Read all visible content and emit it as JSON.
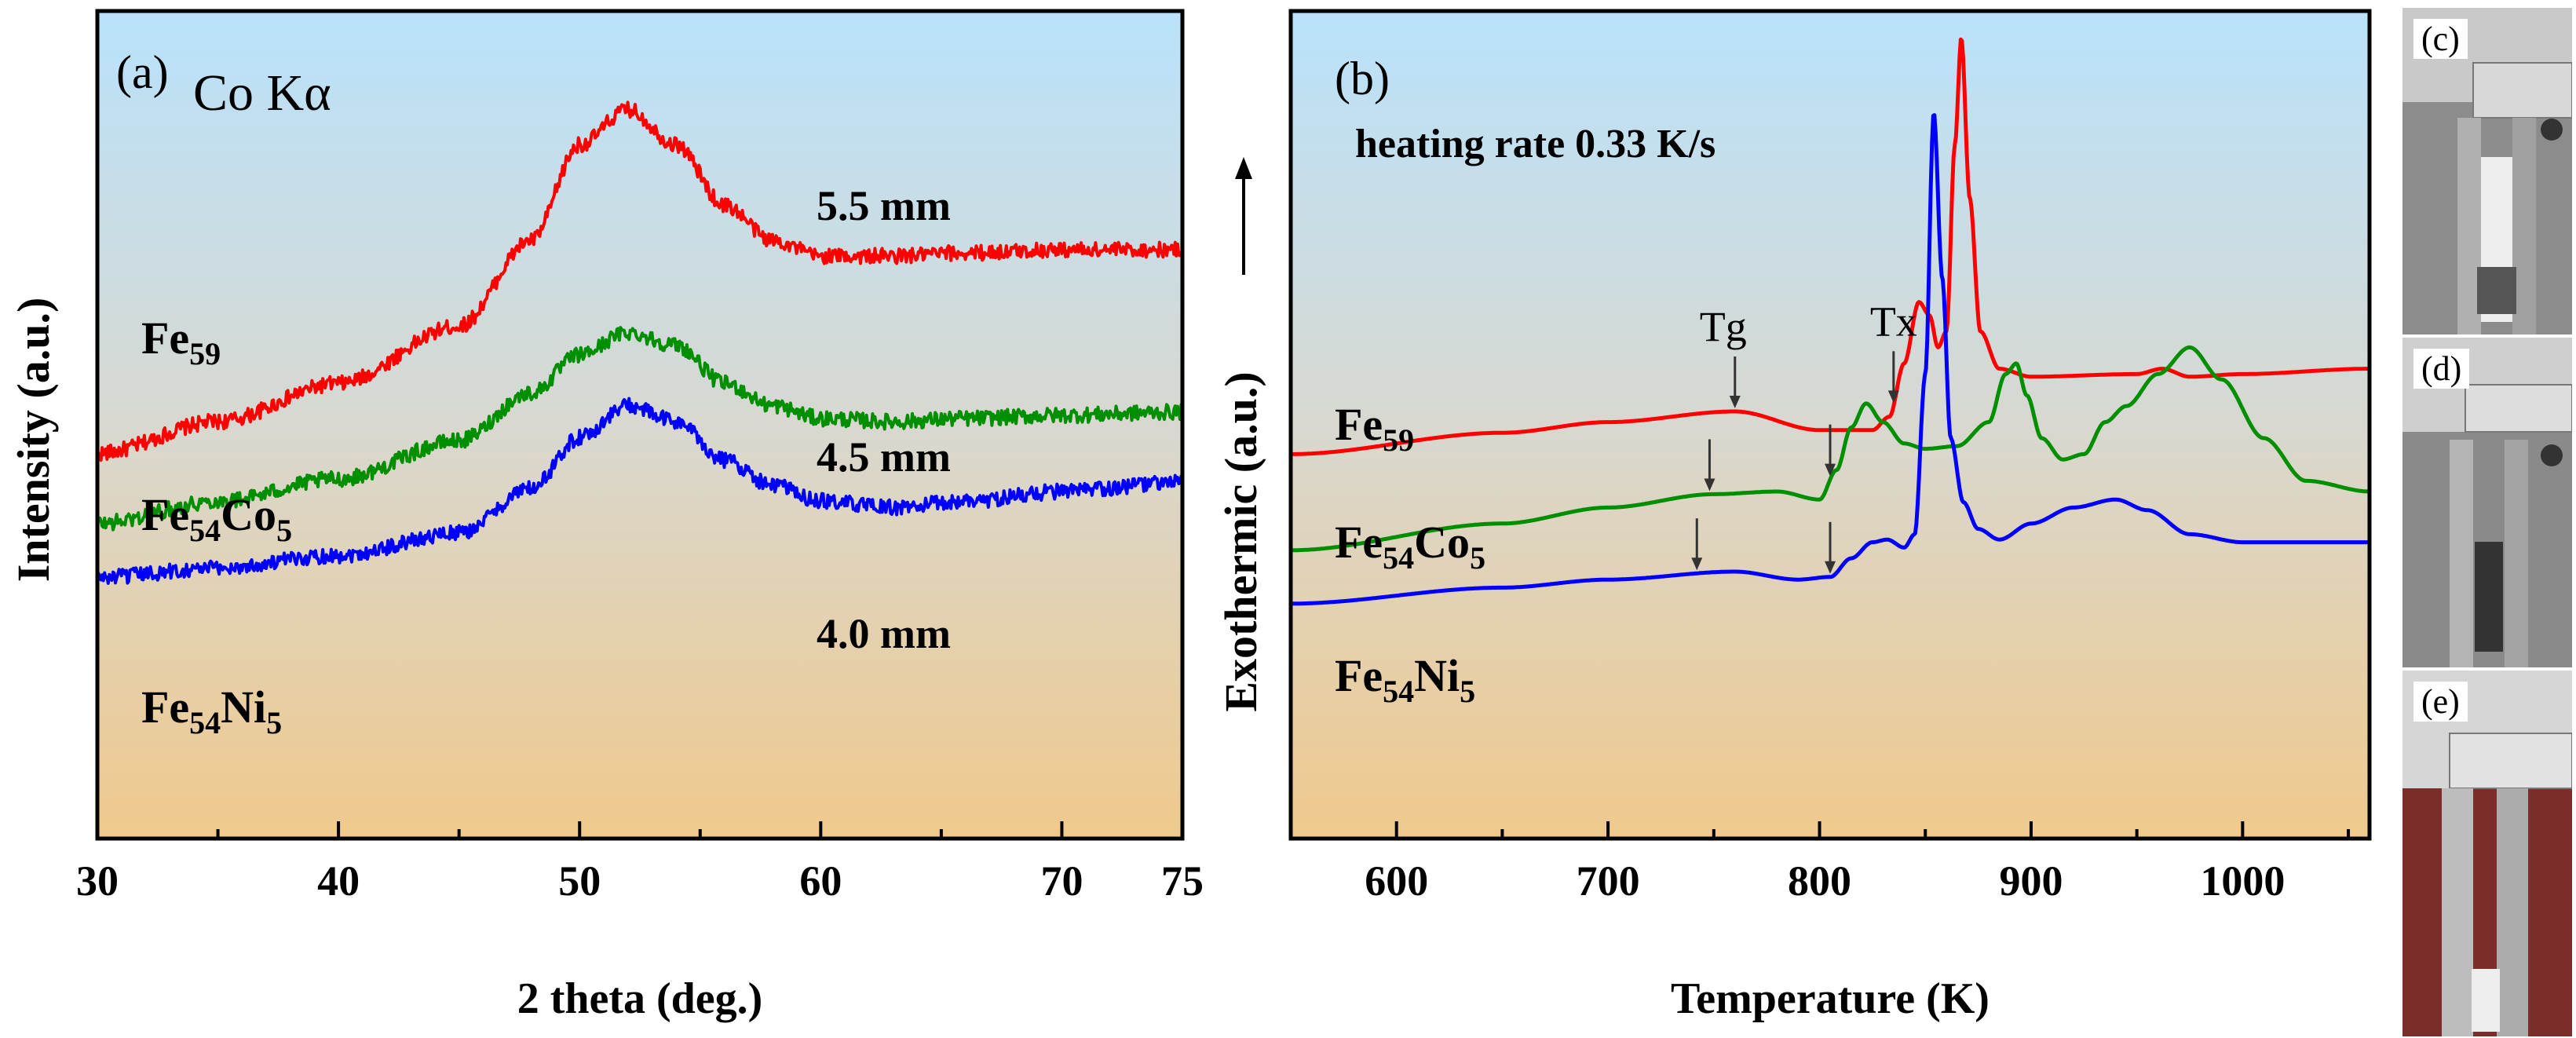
{
  "chart_data": [
    {
      "type": "line",
      "panel_label": "(a)",
      "annotation": "Co Kα",
      "xlabel": "2 theta  (deg.)",
      "ylabel": "Intensity (a.u.)",
      "xlim": [
        30,
        75
      ],
      "xticks": [
        30,
        40,
        50,
        60,
        70
      ],
      "grid": false,
      "series": [
        {
          "name": "Fe59",
          "name_base": "Fe",
          "name_sub": "59",
          "thickness": "5.5 mm",
          "color": "#ff0000",
          "x": [
            30,
            35,
            40,
            45,
            48,
            50,
            52,
            54,
            56,
            58,
            60,
            63,
            66,
            70,
            75
          ],
          "y": [
            0.255,
            0.305,
            0.365,
            0.455,
            0.59,
            0.74,
            0.795,
            0.74,
            0.645,
            0.59,
            0.565,
            0.565,
            0.57,
            0.575,
            0.575
          ]
        },
        {
          "name": "Fe54Co5",
          "name_base": "Fe",
          "name_sub": "54",
          "name_base2": "Co",
          "name_sub2": "5",
          "thickness": "4.5 mm",
          "color": "#008f00",
          "x": [
            30,
            35,
            40,
            45,
            48,
            50,
            52,
            54,
            56,
            58,
            60,
            63,
            66,
            70,
            75
          ],
          "y": [
            0.145,
            0.18,
            0.215,
            0.275,
            0.35,
            0.41,
            0.445,
            0.425,
            0.365,
            0.33,
            0.31,
            0.305,
            0.31,
            0.315,
            0.32
          ]
        },
        {
          "name": "Fe54Ni5",
          "name_base": "Fe",
          "name_sub": "54",
          "name_base2": "Ni",
          "name_sub2": "5",
          "thickness": "4.0 mm",
          "color": "#0000ff",
          "x": [
            30,
            35,
            40,
            45,
            48,
            50,
            52,
            54,
            56,
            58,
            60,
            63,
            66,
            70,
            75
          ],
          "y": [
            0.06,
            0.075,
            0.095,
            0.13,
            0.2,
            0.28,
            0.33,
            0.305,
            0.245,
            0.205,
            0.18,
            0.17,
            0.18,
            0.195,
            0.21
          ]
        }
      ]
    },
    {
      "type": "line",
      "panel_label": "(b)",
      "annotation": "heating rate 0.33 K/s",
      "xlabel": "Temperature  (K)",
      "ylabel": "Exothermic (a.u.)",
      "xlim": [
        550,
        1060
      ],
      "xticks": [
        600,
        700,
        800,
        900,
        1000
      ],
      "grid": false,
      "markers": {
        "tg_label": "Tg",
        "tx_label": "Tx"
      },
      "series": [
        {
          "name": "Fe59",
          "name_base": "Fe",
          "name_sub": "59",
          "color": "#ff0000",
          "x": [
            550,
            650,
            700,
            760,
            800,
            825,
            833,
            840,
            847,
            852,
            856,
            860,
            864,
            867,
            871,
            876,
            885,
            900,
            950,
            962,
            975,
            1000,
            1060
          ],
          "y": [
            0.27,
            0.31,
            0.33,
            0.35,
            0.315,
            0.315,
            0.34,
            0.44,
            0.555,
            0.53,
            0.47,
            0.5,
            0.85,
            1.05,
            0.75,
            0.5,
            0.43,
            0.415,
            0.42,
            0.43,
            0.415,
            0.42,
            0.43
          ],
          "tg": 760,
          "tx": 835
        },
        {
          "name": "Fe54Co5",
          "name_base": "Fe",
          "name_sub": "54",
          "name_base2": "Co",
          "name_sub2": "5",
          "color": "#008f00",
          "x": [
            550,
            650,
            700,
            750,
            780,
            800,
            808,
            815,
            822,
            830,
            840,
            850,
            865,
            880,
            888,
            893,
            898,
            905,
            915,
            925,
            935,
            945,
            960,
            975,
            990,
            1010,
            1030,
            1060
          ],
          "y": [
            0.09,
            0.14,
            0.17,
            0.195,
            0.2,
            0.185,
            0.24,
            0.32,
            0.365,
            0.33,
            0.29,
            0.28,
            0.285,
            0.33,
            0.42,
            0.44,
            0.38,
            0.3,
            0.26,
            0.27,
            0.33,
            0.36,
            0.42,
            0.47,
            0.41,
            0.3,
            0.22,
            0.2
          ],
          "tg": 748,
          "tx": 805
        },
        {
          "name": "Fe54Ni5",
          "name_base": "Fe",
          "name_sub": "54",
          "name_base2": "Ni",
          "name_sub2": "5",
          "color": "#0000ff",
          "x": [
            550,
            650,
            700,
            760,
            790,
            805,
            815,
            825,
            832,
            840,
            845,
            850,
            854,
            858,
            862,
            868,
            875,
            885,
            900,
            920,
            940,
            955,
            975,
            1000,
            1060
          ],
          "y": [
            -0.01,
            0.02,
            0.035,
            0.05,
            0.035,
            0.04,
            0.075,
            0.105,
            0.11,
            0.095,
            0.12,
            0.42,
            0.91,
            0.6,
            0.3,
            0.18,
            0.13,
            0.11,
            0.14,
            0.17,
            0.185,
            0.165,
            0.12,
            0.105,
            0.105
          ],
          "tg": 742,
          "tx": 805
        }
      ]
    }
  ],
  "photos": {
    "c": "(c)",
    "d": "(d)",
    "e": "(e)"
  }
}
